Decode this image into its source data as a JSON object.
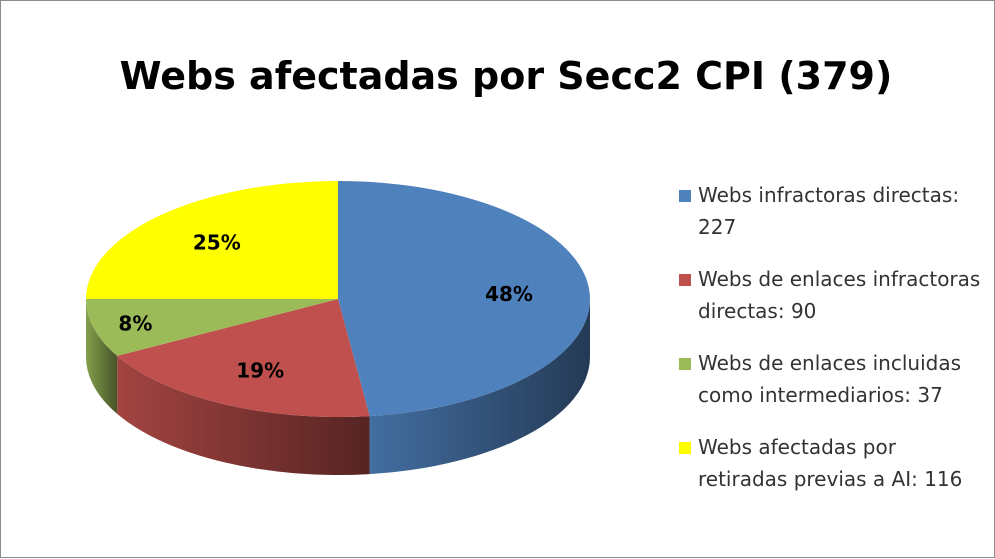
{
  "chart_data": {
    "type": "pie",
    "title": "Webs afectadas por Secc2 CPI (379)",
    "categories": [
      "Webs infractoras directas: 227",
      "Webs de enlaces infractoras directas: 90",
      "Webs de enlaces incluidas como intermediarios: 37",
      "Webs afectadas por retiradas previas a AI: 116"
    ],
    "values": [
      48,
      19,
      8,
      25
    ],
    "value_labels": [
      "48%",
      "19%",
      "8%",
      "25%"
    ],
    "colors": [
      "#4f81bd",
      "#c0504d",
      "#9bbb59",
      "#ffff00"
    ],
    "legend": "right"
  }
}
